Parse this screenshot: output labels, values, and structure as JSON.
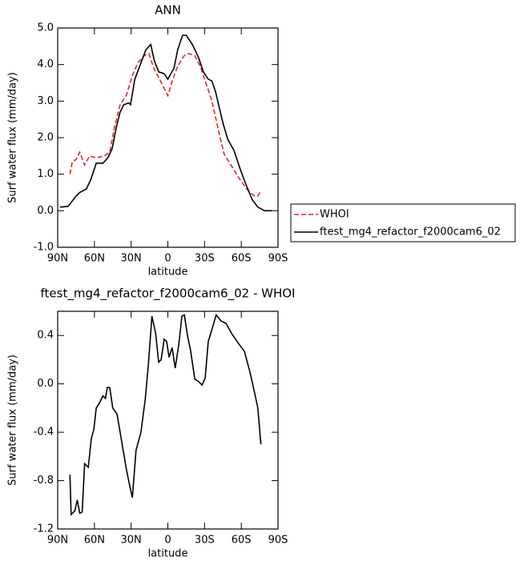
{
  "chart_data": [
    {
      "type": "line",
      "title": "ANN",
      "xlabel": "latitude",
      "ylabel": "Surf water flux (mm/day)",
      "xlim": [
        90,
        -90
      ],
      "ylim": [
        -1.0,
        5.0
      ],
      "xticks": [
        {
          "value": 90,
          "label": "90N"
        },
        {
          "value": 60,
          "label": "60N"
        },
        {
          "value": 30,
          "label": "30N"
        },
        0,
        {
          "value": -30,
          "label": "30S"
        },
        {
          "value": -60,
          "label": "60S"
        },
        {
          "value": -90,
          "label": "90S"
        }
      ],
      "yticks": [
        {
          "value": -1.0,
          "label": "-1.0"
        },
        {
          "value": 0.0,
          "label": "0.0"
        },
        {
          "value": 1.0,
          "label": "1.0"
        },
        {
          "value": 2.0,
          "label": "2.0"
        },
        {
          "value": 3.0,
          "label": "3.0"
        },
        {
          "value": 4.0,
          "label": "4.0"
        },
        {
          "value": 5.0,
          "label": "5.0"
        }
      ],
      "legend": "right",
      "series": [
        {
          "name": "WHOI",
          "color": "#e8242a",
          "dash": true,
          "x": [
            80,
            78,
            75,
            72,
            68,
            64,
            58.5,
            52,
            47.5,
            43.5,
            39,
            34,
            29,
            24.5,
            19,
            15.5,
            11.5,
            6,
            3,
            0,
            -3.5,
            -8,
            -13.5,
            -17,
            -22,
            -26.5,
            -31.5,
            -36,
            -41,
            -46,
            -52.5,
            -59,
            -65.5,
            -71,
            -73.5,
            -76
          ],
          "values": [
            1.0,
            1.35,
            1.4,
            1.6,
            1.25,
            1.5,
            1.45,
            1.5,
            1.6,
            2.3,
            2.9,
            3.15,
            3.7,
            4.05,
            4.25,
            4.3,
            3.9,
            3.55,
            3.35,
            3.15,
            3.55,
            3.95,
            4.25,
            4.3,
            4.25,
            3.95,
            3.45,
            3.0,
            2.25,
            1.55,
            1.2,
            0.85,
            0.55,
            0.4,
            0.4,
            0.55
          ]
        },
        {
          "name": "ftest_mg4_refactor_f2000cam6_02",
          "color": "#000000",
          "dash": false,
          "x": [
            88,
            81.5,
            75,
            72,
            66.5,
            63,
            58.5,
            53,
            49,
            45.5,
            42,
            39,
            36,
            32,
            30.5,
            27,
            22.5,
            18,
            14,
            11,
            7.5,
            3,
            0,
            -5,
            -8,
            -12,
            -15,
            -20,
            -25,
            -29,
            -33,
            -36,
            -39,
            -45,
            -49,
            -54,
            -59,
            -64,
            -69,
            -73.5,
            -79,
            -85
          ],
          "values": [
            0.1,
            0.12,
            0.4,
            0.5,
            0.6,
            0.85,
            1.3,
            1.3,
            1.45,
            1.7,
            2.3,
            2.7,
            2.9,
            2.95,
            2.9,
            3.6,
            4.0,
            4.4,
            4.55,
            4.1,
            3.8,
            3.75,
            3.6,
            3.9,
            4.4,
            4.8,
            4.8,
            4.55,
            4.2,
            3.8,
            3.6,
            3.55,
            3.25,
            2.4,
            1.95,
            1.65,
            1.15,
            0.7,
            0.3,
            0.1,
            0.0,
            0.0
          ]
        }
      ]
    },
    {
      "type": "line",
      "title": "ftest_mg4_refactor_f2000cam6_02 - WHOI",
      "xlabel": "latitude",
      "ylabel": "Surf water flux (mm/day)",
      "xlim": [
        90,
        -90
      ],
      "ylim": [
        -1.2,
        0.6
      ],
      "xticks": [
        {
          "value": 90,
          "label": "90N"
        },
        {
          "value": 60,
          "label": "60N"
        },
        {
          "value": 30,
          "label": "30N"
        },
        0,
        {
          "value": -30,
          "label": "30S"
        },
        {
          "value": -60,
          "label": "60S"
        },
        {
          "value": -90,
          "label": "90S"
        }
      ],
      "yticks": [
        -1.2,
        -0.8,
        -0.4,
        {
          "value": 0.0,
          "label": "0.0"
        },
        0.4
      ],
      "series": [
        {
          "color": "#000000",
          "dash": false,
          "x": [
            80,
            79,
            76,
            74,
            72,
            70,
            68,
            65,
            62.5,
            60.5,
            58.5,
            56,
            53,
            51,
            49.5,
            47.5,
            45,
            41.5,
            39,
            36.5,
            34,
            31,
            29,
            26,
            22,
            18.5,
            16,
            13,
            10,
            7.5,
            5.5,
            3,
            1,
            -1,
            -3.5,
            -6,
            -9,
            -11.5,
            -13.5,
            -16,
            -18.5,
            -22,
            -25,
            -28,
            -30.5,
            -33,
            -36,
            -39.5,
            -43.5,
            -47.5,
            -52.5,
            -58,
            -62.5,
            -67,
            -71,
            -73.5,
            -76
          ],
          "values": [
            -0.75,
            -1.08,
            -1.05,
            -0.96,
            -1.07,
            -1.06,
            -0.66,
            -0.69,
            -0.45,
            -0.38,
            -0.2,
            -0.16,
            -0.1,
            -0.12,
            -0.03,
            -0.03,
            -0.2,
            -0.25,
            -0.4,
            -0.55,
            -0.7,
            -0.85,
            -0.94,
            -0.55,
            -0.4,
            -0.13,
            0.15,
            0.56,
            0.42,
            0.18,
            0.2,
            0.37,
            0.35,
            0.22,
            0.3,
            0.13,
            0.33,
            0.56,
            0.57,
            0.4,
            0.28,
            0.04,
            0.02,
            -0.01,
            0.05,
            0.35,
            0.45,
            0.57,
            0.52,
            0.5,
            0.41,
            0.33,
            0.27,
            0.1,
            -0.08,
            -0.2,
            -0.5
          ]
        }
      ]
    }
  ]
}
